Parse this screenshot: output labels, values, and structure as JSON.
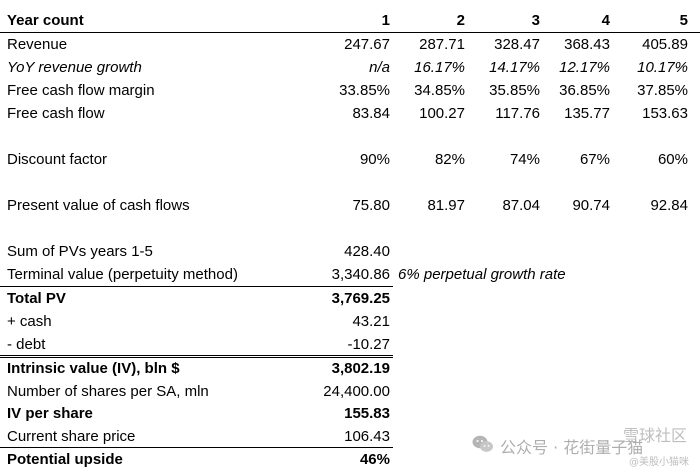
{
  "header": {
    "label": "Year count",
    "years": [
      "1",
      "2",
      "3",
      "4",
      "5"
    ]
  },
  "revenue": {
    "label": "Revenue",
    "values": [
      "247.67",
      "287.71",
      "328.47",
      "368.43",
      "405.89"
    ]
  },
  "yoy": {
    "label": "YoY revenue growth",
    "values": [
      "n/a",
      "16.17%",
      "14.17%",
      "12.17%",
      "10.17%"
    ]
  },
  "fcf_margin": {
    "label": "Free cash flow margin",
    "values": [
      "33.85%",
      "34.85%",
      "35.85%",
      "36.85%",
      "37.85%"
    ]
  },
  "fcf": {
    "label": "Free cash flow",
    "values": [
      "83.84",
      "100.27",
      "117.76",
      "135.77",
      "153.63"
    ]
  },
  "discount": {
    "label": "Discount factor",
    "values": [
      "90%",
      "82%",
      "74%",
      "67%",
      "60%"
    ]
  },
  "pv": {
    "label": "Present value of cash flows",
    "values": [
      "75.80",
      "81.97",
      "87.04",
      "90.74",
      "92.84"
    ]
  },
  "sum_pv": {
    "label": "Sum of PVs years 1-5",
    "value": "428.40"
  },
  "terminal": {
    "label": "Terminal value (perpetuity method)",
    "value": "3,340.86",
    "note": "6% perpetual growth rate"
  },
  "total_pv": {
    "label": "Total PV",
    "value": "3,769.25"
  },
  "cash": {
    "label": "+ cash",
    "value": "43.21"
  },
  "debt": {
    "label": "- debt",
    "value": "-10.27"
  },
  "intrinsic": {
    "label": "Intrinsic value (IV), bln $",
    "value": "3,802.19"
  },
  "shares": {
    "label": "Number of shares per SA, mln",
    "value": "24,400.00"
  },
  "iv_share": {
    "label": "IV per share",
    "value": "155.83"
  },
  "price": {
    "label": "Current share price",
    "value": "106.43"
  },
  "upside": {
    "label": "Potential upside",
    "value": "46%"
  },
  "watermark": {
    "top": "雪球社区",
    "main": "公众号 · 花街量子猫",
    "sub": "@美股小猫咪"
  }
}
